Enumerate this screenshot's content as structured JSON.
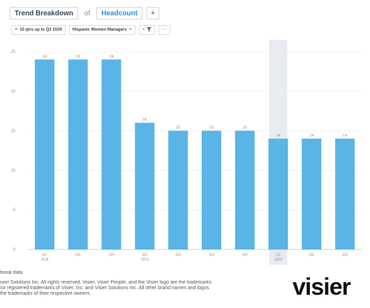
{
  "header": {
    "view_label": "Trend Breakdown",
    "of_label": "of",
    "metric_label": "Headcount",
    "add_label": "+"
  },
  "filters": {
    "period_label": "10 qtrs up to Q3 2020",
    "population_label": "Hispanic Women Managers",
    "remove_label": "×",
    "add_filter_label": "+",
    "more_label": "···"
  },
  "chart_data": {
    "type": "bar",
    "categories": [
      "Q2 2018",
      "Q3",
      "Q4",
      "Q1 2019",
      "Q2",
      "Q3",
      "Q4",
      "Q1 2020",
      "Q2",
      "Q3"
    ],
    "tick_labels": [
      [
        "Q2",
        "2018"
      ],
      [
        "Q3",
        ""
      ],
      [
        "Q4",
        ""
      ],
      [
        "Q1",
        "2019"
      ],
      [
        "Q2",
        ""
      ],
      [
        "Q3",
        ""
      ],
      [
        "Q4",
        ""
      ],
      [
        "Q1",
        "2020"
      ],
      [
        "Q2",
        ""
      ],
      [
        "Q3",
        ""
      ]
    ],
    "values": [
      24,
      24,
      24,
      16,
      15,
      15,
      15,
      14,
      14,
      14
    ],
    "ylim": [
      0,
      25
    ],
    "yticks": [
      0,
      5,
      10,
      15,
      20,
      25
    ],
    "highlighted_index": 7,
    "bar_color": "#5ab4e6",
    "highlight_color": "#e8ebef",
    "grid": true,
    "data_labels": true
  },
  "footer": {
    "data_note": "tional data",
    "copyright_lines": [
      "isier Solutions Inc. All rights reserved. Visier, Visier People, and the Visier logo are the trademarks",
      "/or registered trademarks of Visier, Inc. and Visier Solutions Inc. All other brand names and logos",
      "the trademarks of their respective owners."
    ],
    "logo_text": "visier"
  }
}
